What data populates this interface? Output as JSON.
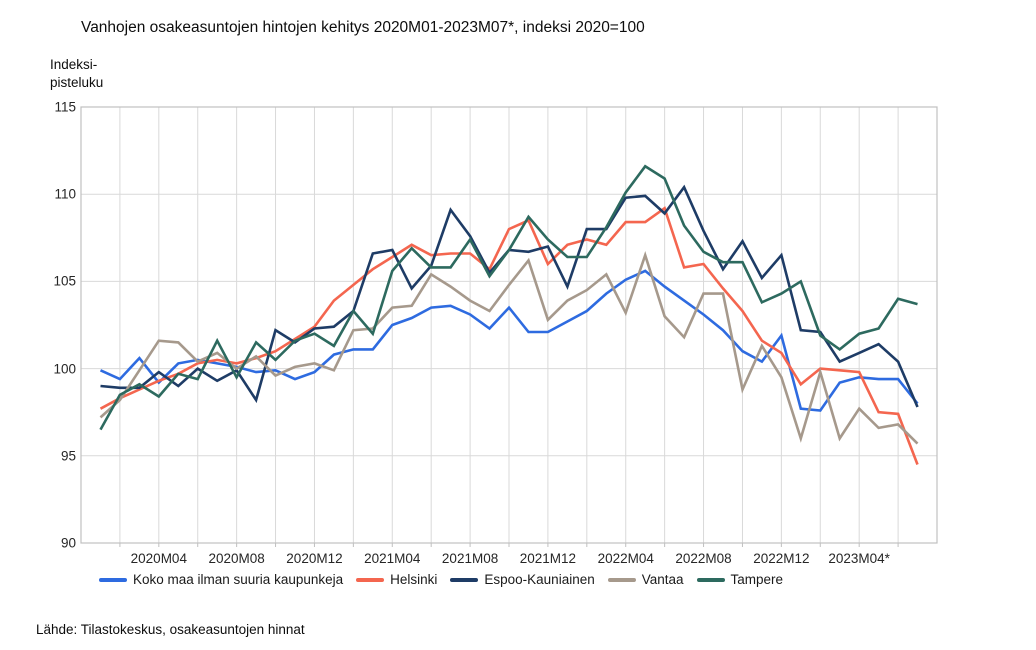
{
  "chart_data": {
    "type": "line",
    "title": "Vanhojen osakeasuntojen hintojen kehitys 2020M01-2023M07*, indeksi 2020=100",
    "y_axis_label_line1": "Indeksi-",
    "y_axis_label_line2": "pisteluku",
    "ylim": [
      90,
      115
    ],
    "y_ticks": [
      115,
      110,
      105,
      100,
      95,
      90
    ],
    "grid": "on",
    "legend_position": "bottom",
    "categories": [
      "2020M01",
      "2020M02",
      "2020M03",
      "2020M04",
      "2020M05",
      "2020M06",
      "2020M07",
      "2020M08",
      "2020M09",
      "2020M10",
      "2020M11",
      "2020M12",
      "2021M01",
      "2021M02",
      "2021M03",
      "2021M04",
      "2021M05",
      "2021M06",
      "2021M07",
      "2021M08",
      "2021M09",
      "2021M10",
      "2021M11",
      "2021M12",
      "2022M01",
      "2022M02",
      "2022M03",
      "2022M04",
      "2022M05",
      "2022M06",
      "2022M07",
      "2022M08",
      "2022M09",
      "2022M10",
      "2022M11",
      "2022M12",
      "2023M01",
      "2023M02",
      "2023M03",
      "2023M04",
      "2023M05",
      "2023M06",
      "2023M07"
    ],
    "x_tick_labels": [
      "2020M04",
      "2020M08",
      "2020M12",
      "2021M04",
      "2021M08",
      "2021M12",
      "2022M04",
      "2022M08",
      "2022M12",
      "2023M04*"
    ],
    "x_tick_months": [
      4,
      8,
      12,
      16,
      20,
      24,
      28,
      32,
      36,
      40
    ],
    "series": [
      {
        "name": "Koko maa ilman suuria kaupunkeja",
        "color": "#2e6be0",
        "values": [
          99.9,
          99.4,
          100.6,
          99.2,
          100.3,
          100.5,
          100.3,
          100.1,
          99.8,
          99.9,
          99.4,
          99.8,
          100.8,
          101.1,
          101.1,
          102.5,
          102.9,
          103.5,
          103.6,
          103.1,
          102.3,
          103.5,
          102.1,
          102.1,
          102.7,
          103.3,
          104.3,
          105.1,
          105.6,
          104.7,
          103.9,
          103.1,
          102.2,
          101.0,
          100.4,
          101.9,
          97.7,
          97.6,
          99.2,
          99.5,
          99.4,
          99.4,
          98.0
        ]
      },
      {
        "name": "Helsinki",
        "color": "#f4664f",
        "values": [
          97.7,
          98.3,
          98.8,
          99.3,
          99.7,
          100.3,
          100.5,
          100.3,
          100.6,
          101.0,
          101.7,
          102.4,
          103.9,
          104.8,
          105.7,
          106.4,
          107.1,
          106.5,
          106.6,
          106.6,
          105.7,
          108.0,
          108.5,
          106.0,
          107.1,
          107.4,
          107.1,
          108.4,
          108.4,
          109.2,
          105.8,
          106.0,
          104.6,
          103.3,
          101.6,
          100.9,
          99.1,
          100.0,
          99.9,
          99.8,
          97.5,
          97.4,
          94.5
        ]
      },
      {
        "name": "Espoo-Kauniainen",
        "color": "#1e3c66",
        "values": [
          99.0,
          98.9,
          98.9,
          99.8,
          99.0,
          100.0,
          99.3,
          99.9,
          98.2,
          102.2,
          101.5,
          102.3,
          102.4,
          103.3,
          106.6,
          106.8,
          104.6,
          105.9,
          109.1,
          107.6,
          105.5,
          106.8,
          106.7,
          107.0,
          104.7,
          108.0,
          108.0,
          109.8,
          109.9,
          108.9,
          110.4,
          107.9,
          105.7,
          107.3,
          105.2,
          106.5,
          102.2,
          102.1,
          100.4,
          100.9,
          101.4,
          100.4,
          97.8
        ]
      },
      {
        "name": "Vantaa",
        "color": "#a6998c",
        "values": [
          97.2,
          98.2,
          99.9,
          101.6,
          101.5,
          100.4,
          100.9,
          100.0,
          100.7,
          99.6,
          100.1,
          100.3,
          99.9,
          102.2,
          102.3,
          103.5,
          103.6,
          105.4,
          104.7,
          103.9,
          103.3,
          104.8,
          106.2,
          102.8,
          103.9,
          104.5,
          105.4,
          103.2,
          106.5,
          103.0,
          101.8,
          104.3,
          104.3,
          98.8,
          101.3,
          99.5,
          96.0,
          99.8,
          96.0,
          97.7,
          96.6,
          96.8,
          95.7
        ]
      },
      {
        "name": "Tampere",
        "color": "#2d6a5f",
        "values": [
          96.5,
          98.5,
          99.1,
          98.4,
          99.7,
          99.4,
          101.6,
          99.5,
          101.5,
          100.5,
          101.6,
          102.0,
          101.3,
          103.3,
          102.0,
          105.6,
          106.9,
          105.8,
          105.8,
          107.4,
          105.3,
          106.8,
          108.7,
          107.4,
          106.4,
          106.4,
          108.1,
          110.1,
          111.6,
          110.9,
          108.2,
          106.7,
          106.1,
          106.1,
          103.8,
          104.3,
          105.0,
          101.9,
          101.1,
          102.0,
          102.3,
          104.0,
          103.7
        ]
      }
    ],
    "colors": {
      "gridline": "#d9d9d9",
      "plot_border": "#c0c0c0",
      "text": "#262626"
    }
  },
  "footer": {
    "source": "Lähde: Tilastokeskus, osakeasuntojen hinnat"
  }
}
